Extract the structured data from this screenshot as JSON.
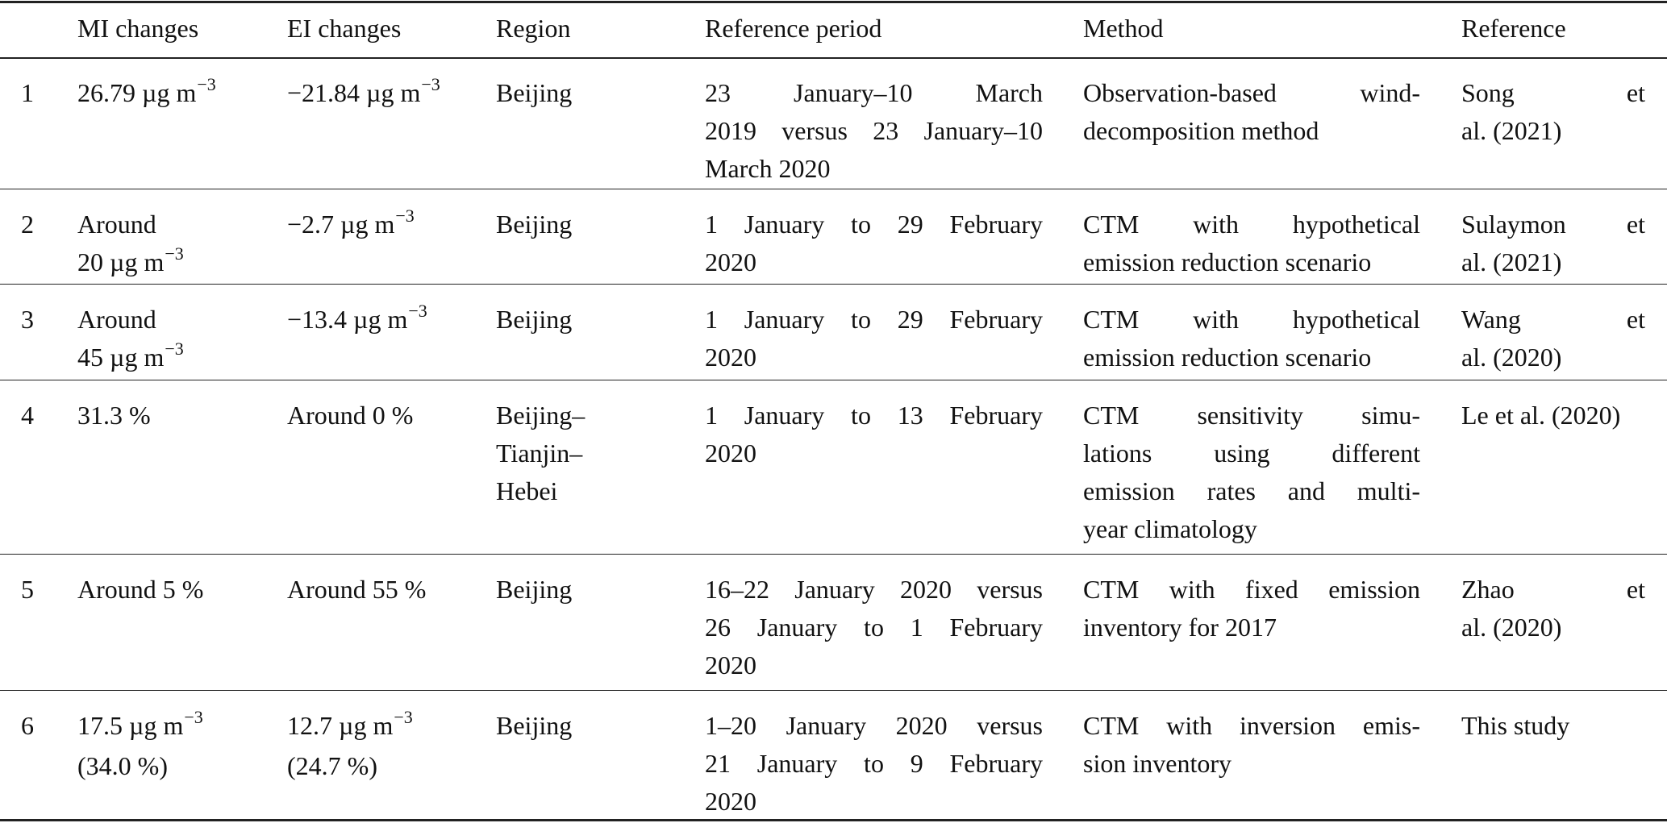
{
  "table": {
    "headers": [
      "",
      "MI changes",
      "EI changes",
      "Region",
      "Reference period",
      "Method",
      "Reference"
    ],
    "rows": [
      {
        "cells": [
          [
            {
              "text": "1"
            }
          ],
          [
            {
              "text": "26.79 µg m",
              "sup": "−3"
            }
          ],
          [
            {
              "text": "−21.84 µg m",
              "sup": "−3"
            }
          ],
          [
            {
              "text": "Beijing"
            }
          ],
          [
            {
              "text": "23 January–10 March"
            },
            {
              "text": "2019 versus 23 January–10"
            },
            {
              "text": "March 2020"
            }
          ],
          [
            {
              "text": "Observation-based wind-"
            },
            {
              "text": "decomposition method"
            }
          ],
          [
            {
              "text": "Song et"
            },
            {
              "text": "al. (2021)"
            }
          ]
        ]
      },
      {
        "cells": [
          [
            {
              "text": "2"
            }
          ],
          [
            {
              "text": "Around"
            },
            {
              "text": "20 µg m",
              "sup": "−3"
            }
          ],
          [
            {
              "text": "−2.7 µg m",
              "sup": "−3"
            }
          ],
          [
            {
              "text": "Beijing"
            }
          ],
          [
            {
              "text": "1 January to 29 February"
            },
            {
              "text": "2020"
            }
          ],
          [
            {
              "text": "CTM with hypothetical"
            },
            {
              "text": "emission reduction scenario"
            }
          ],
          [
            {
              "text": "Sulaymon et"
            },
            {
              "text": "al. (2021)"
            }
          ]
        ]
      },
      {
        "cells": [
          [
            {
              "text": "3"
            }
          ],
          [
            {
              "text": "Around"
            },
            {
              "text": "45 µg m",
              "sup": "−3"
            }
          ],
          [
            {
              "text": "−13.4 µg m",
              "sup": "−3"
            }
          ],
          [
            {
              "text": "Beijing"
            }
          ],
          [
            {
              "text": "1 January to 29 February"
            },
            {
              "text": "2020"
            }
          ],
          [
            {
              "text": "CTM with hypothetical"
            },
            {
              "text": "emission reduction scenario"
            }
          ],
          [
            {
              "text": "Wang et"
            },
            {
              "text": "al. (2020)"
            }
          ]
        ]
      },
      {
        "cells": [
          [
            {
              "text": "4"
            }
          ],
          [
            {
              "text": "31.3 %"
            }
          ],
          [
            {
              "text": "Around 0 %"
            }
          ],
          [
            {
              "text": "Beijing–"
            },
            {
              "text": "Tianjin–"
            },
            {
              "text": "Hebei"
            }
          ],
          [
            {
              "text": "1 January to 13 February"
            },
            {
              "text": "2020"
            }
          ],
          [
            {
              "text": "CTM sensitivity simu-"
            },
            {
              "text": "lations using different"
            },
            {
              "text": "emission rates and multi-"
            },
            {
              "text": "year climatology"
            }
          ],
          [
            {
              "text": "Le et al. (2020)"
            }
          ]
        ]
      },
      {
        "cells": [
          [
            {
              "text": "5"
            }
          ],
          [
            {
              "text": "Around 5 %"
            }
          ],
          [
            {
              "text": "Around 55 %"
            }
          ],
          [
            {
              "text": "Beijing"
            }
          ],
          [
            {
              "text": "16–22 January 2020 versus"
            },
            {
              "text": "26 January to 1 February"
            },
            {
              "text": "2020"
            }
          ],
          [
            {
              "text": "CTM with fixed emission"
            },
            {
              "text": "inventory for 2017"
            }
          ],
          [
            {
              "text": "Zhao et"
            },
            {
              "text": "al. (2020)"
            }
          ]
        ]
      },
      {
        "cells": [
          [
            {
              "text": "6"
            }
          ],
          [
            {
              "text": "17.5 µg m",
              "sup": "−3"
            },
            {
              "text": "(34.0 %)"
            }
          ],
          [
            {
              "text": "12.7 µg m",
              "sup": "−3"
            },
            {
              "text": "(24.7 %)"
            }
          ],
          [
            {
              "text": "Beijing"
            }
          ],
          [
            {
              "text": "1–20 January 2020 versus"
            },
            {
              "text": "21 January to 9 February"
            },
            {
              "text": "2020"
            }
          ],
          [
            {
              "text": "CTM with inversion emis-"
            },
            {
              "text": "sion inventory"
            }
          ],
          [
            {
              "text": "This study"
            }
          ]
        ]
      }
    ]
  }
}
